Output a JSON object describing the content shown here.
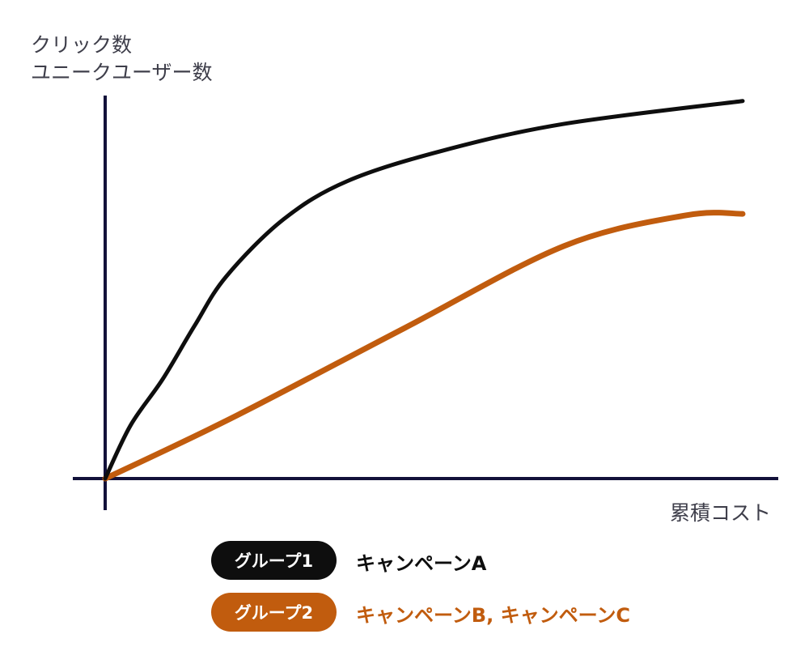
{
  "chart_data": {
    "type": "line",
    "title": "",
    "ylabel": [
      "クリック数",
      "ユニークユーザー数"
    ],
    "xlabel": "累積コスト",
    "xlim": [
      0,
      100
    ],
    "ylim": [
      0,
      100
    ],
    "grid": false,
    "series": [
      {
        "name": "グループ1",
        "legend_text": "キャンペーンA",
        "color": "#0e0e0e",
        "x": [
          0,
          4,
          9,
          14,
          19,
          28,
          38,
          53,
          72,
          100
        ],
        "y": [
          0,
          14,
          26,
          40,
          53,
          68,
          78,
          86,
          93,
          99
        ]
      },
      {
        "name": "グループ2",
        "legend_text": "キャンペーンB, キャンペーンC",
        "color": "#c15c0e",
        "x": [
          0,
          20,
          47,
          72,
          91,
          100
        ],
        "y": [
          0,
          16,
          39.5,
          61,
          69,
          69.4
        ]
      }
    ],
    "legend_placement": "bottom-center",
    "axis_color": "#12113a"
  }
}
